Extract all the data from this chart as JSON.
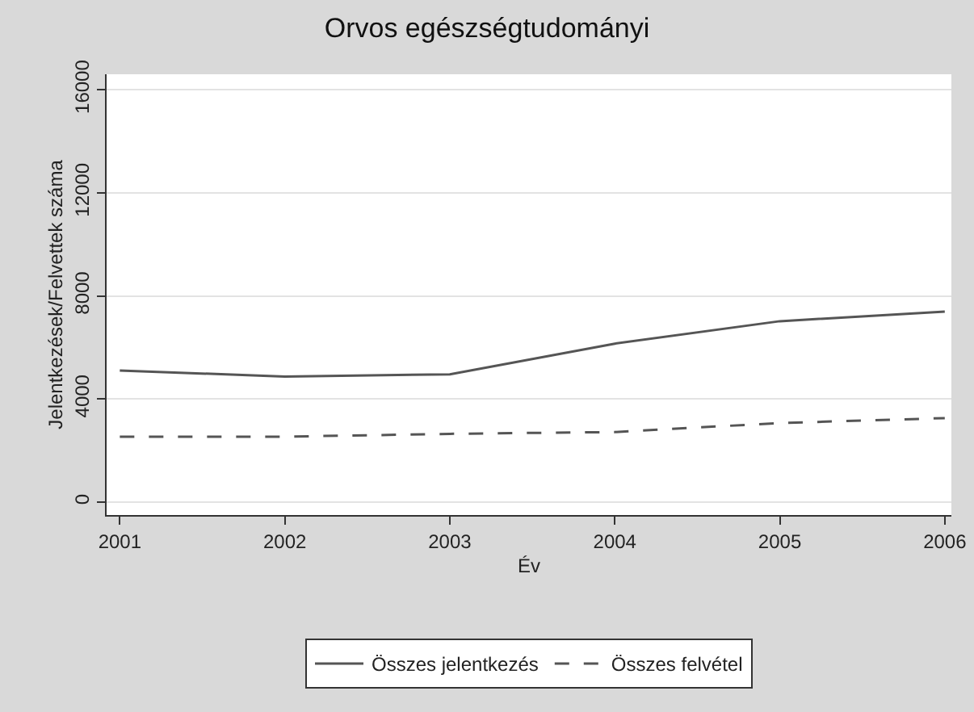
{
  "chart_data": {
    "type": "line",
    "title": "Orvos egészségtudományi",
    "xlabel": "Év",
    "ylabel": "Jelentkezések/Felvettek száma",
    "x": [
      2001,
      2002,
      2003,
      2004,
      2005,
      2006
    ],
    "series": [
      {
        "name": "Összes jelentkezés",
        "color": "#555555",
        "line_style": "solid",
        "values": [
          5110,
          4870,
          4960,
          6150,
          7020,
          7390
        ]
      },
      {
        "name": "Összes felvétel",
        "color": "#555555",
        "line_style": "dashed",
        "values": [
          2540,
          2540,
          2650,
          2720,
          3070,
          3260
        ]
      }
    ],
    "xlim": [
      2000.92,
      2006.04
    ],
    "xticks": [
      2001,
      2002,
      2003,
      2004,
      2005,
      2006
    ],
    "ylim": [
      -500,
      16600
    ],
    "yticks": [
      0,
      4000,
      8000,
      12000,
      16000
    ],
    "grid": "y",
    "legend": "bottom",
    "marker": "none"
  }
}
